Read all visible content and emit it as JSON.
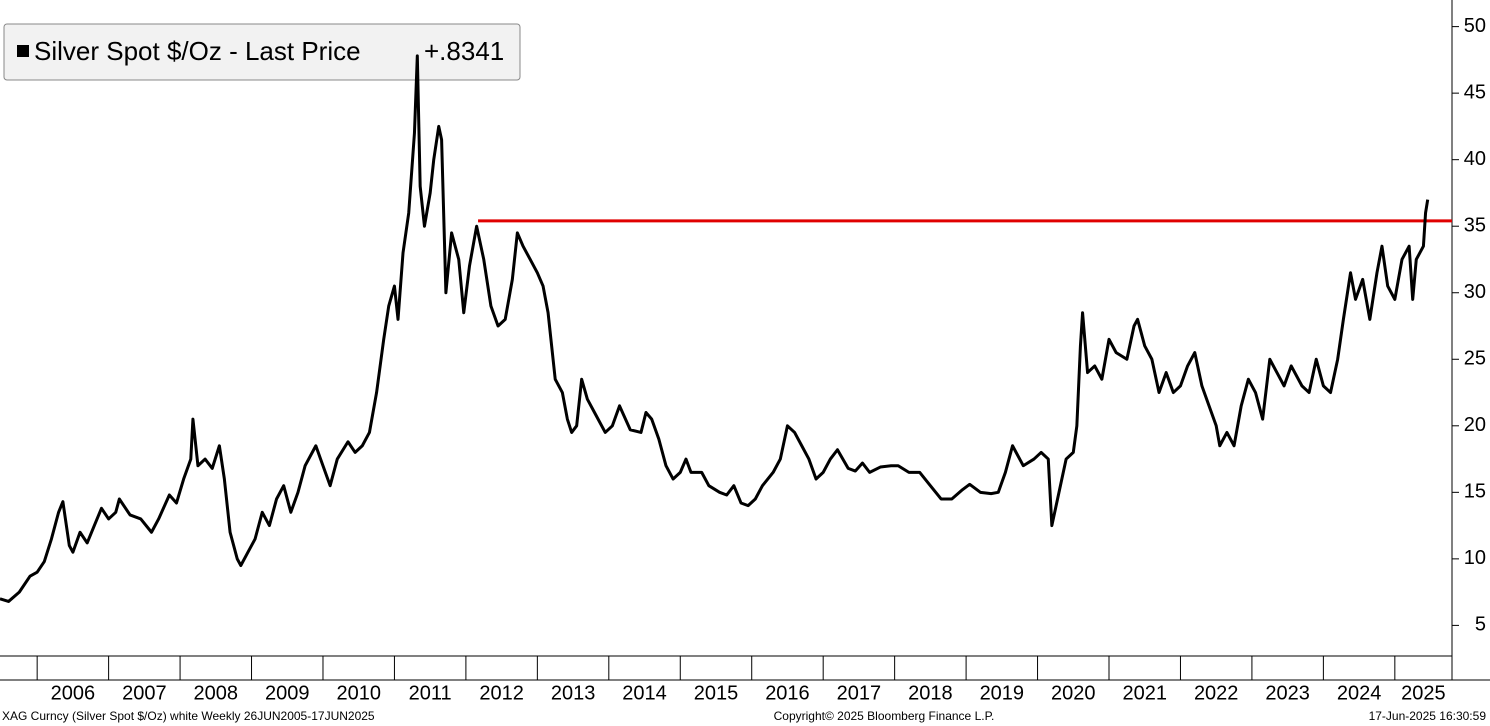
{
  "chart_data": {
    "type": "line",
    "legend_text": "Silver Spot $/Oz - Last Price",
    "legend_value": "+.8341",
    "footer_left": "XAG Curncy (Silver Spot  $/Oz) white  Weekly 26JUN2005-17JUN2025",
    "footer_center": "Copyright© 2025 Bloomberg Finance L.P.",
    "footer_right": "17-Jun-2025 16:30:59",
    "xlim": [
      2005.48,
      2025.8
    ],
    "ylim": [
      2.7,
      52
    ],
    "xticks": [
      2006,
      2007,
      2008,
      2009,
      2010,
      2011,
      2012,
      2013,
      2014,
      2015,
      2016,
      2017,
      2018,
      2019,
      2020,
      2021,
      2022,
      2023,
      2024,
      2025
    ],
    "yticks": [
      5,
      10,
      15,
      20,
      25,
      30,
      35,
      40,
      45,
      50
    ],
    "grid": false,
    "hline": {
      "value": 35.4,
      "from": 2012.17,
      "color": "#e00000"
    },
    "series": [
      {
        "name": "Silver Spot $/Oz",
        "color": "#000000",
        "x": [
          2005.48,
          2005.6,
          2005.75,
          2005.9,
          2006.0,
          2006.1,
          2006.2,
          2006.3,
          2006.36,
          2006.45,
          2006.5,
          2006.6,
          2006.7,
          2006.8,
          2006.9,
          2007.0,
          2007.1,
          2007.15,
          2007.3,
          2007.45,
          2007.6,
          2007.7,
          2007.85,
          2007.95,
          2008.05,
          2008.15,
          2008.18,
          2008.25,
          2008.35,
          2008.45,
          2008.55,
          2008.62,
          2008.7,
          2008.8,
          2008.85,
          2008.95,
          2009.05,
          2009.15,
          2009.25,
          2009.35,
          2009.45,
          2009.55,
          2009.65,
          2009.75,
          2009.9,
          2010.0,
          2010.1,
          2010.2,
          2010.35,
          2010.45,
          2010.55,
          2010.65,
          2010.75,
          2010.85,
          2010.92,
          2011.0,
          2011.05,
          2011.12,
          2011.2,
          2011.28,
          2011.32,
          2011.36,
          2011.42,
          2011.5,
          2011.55,
          2011.62,
          2011.66,
          2011.72,
          2011.8,
          2011.9,
          2011.97,
          2012.05,
          2012.15,
          2012.25,
          2012.35,
          2012.45,
          2012.55,
          2012.65,
          2012.72,
          2012.8,
          2012.9,
          2013.0,
          2013.08,
          2013.15,
          2013.25,
          2013.35,
          2013.42,
          2013.48,
          2013.55,
          2013.62,
          2013.7,
          2013.8,
          2013.95,
          2014.05,
          2014.15,
          2014.3,
          2014.45,
          2014.52,
          2014.6,
          2014.7,
          2014.8,
          2014.9,
          2015.0,
          2015.08,
          2015.15,
          2015.3,
          2015.4,
          2015.55,
          2015.65,
          2015.75,
          2015.85,
          2015.95,
          2016.05,
          2016.15,
          2016.3,
          2016.4,
          2016.5,
          2016.6,
          2016.7,
          2016.8,
          2016.9,
          2017.0,
          2017.1,
          2017.2,
          2017.35,
          2017.45,
          2017.55,
          2017.65,
          2017.8,
          2017.95,
          2018.05,
          2018.2,
          2018.35,
          2018.5,
          2018.65,
          2018.8,
          2018.95,
          2019.05,
          2019.2,
          2019.35,
          2019.45,
          2019.55,
          2019.65,
          2019.8,
          2019.95,
          2020.05,
          2020.15,
          2020.2,
          2020.3,
          2020.4,
          2020.5,
          2020.55,
          2020.6,
          2020.63,
          2020.7,
          2020.8,
          2020.9,
          2021.0,
          2021.1,
          2021.25,
          2021.35,
          2021.4,
          2021.5,
          2021.6,
          2021.7,
          2021.8,
          2021.9,
          2022.0,
          2022.1,
          2022.2,
          2022.3,
          2022.4,
          2022.5,
          2022.55,
          2022.65,
          2022.75,
          2022.85,
          2022.95,
          2023.05,
          2023.15,
          2023.25,
          2023.35,
          2023.45,
          2023.55,
          2023.7,
          2023.8,
          2023.9,
          2024.0,
          2024.1,
          2024.2,
          2024.28,
          2024.38,
          2024.45,
          2024.55,
          2024.65,
          2024.75,
          2024.82,
          2024.9,
          2025.0,
          2025.1,
          2025.2,
          2025.25,
          2025.3,
          2025.4,
          2025.43,
          2025.46
        ],
        "values": [
          7.0,
          6.8,
          7.5,
          8.7,
          9.0,
          9.8,
          11.5,
          13.5,
          14.3,
          11.0,
          10.5,
          12.0,
          11.2,
          12.5,
          13.8,
          13.0,
          13.5,
          14.5,
          13.3,
          13.0,
          12.0,
          13.0,
          14.8,
          14.2,
          16.0,
          17.5,
          20.5,
          17.0,
          17.5,
          16.8,
          18.5,
          16.0,
          12.0,
          10.0,
          9.5,
          10.5,
          11.5,
          13.5,
          12.5,
          14.5,
          15.5,
          13.5,
          15.0,
          17.0,
          18.5,
          17.0,
          15.5,
          17.5,
          18.8,
          18.0,
          18.5,
          19.5,
          22.5,
          26.5,
          29.0,
          30.5,
          28.0,
          33.0,
          36.0,
          42.0,
          47.8,
          38.0,
          35.0,
          37.5,
          40.0,
          42.5,
          41.5,
          30.0,
          34.5,
          32.5,
          28.5,
          32.0,
          35.0,
          32.5,
          29.0,
          27.5,
          28.0,
          31.0,
          34.5,
          33.5,
          32.5,
          31.5,
          30.5,
          28.5,
          23.5,
          22.5,
          20.5,
          19.5,
          20.0,
          23.5,
          22.0,
          21.0,
          19.5,
          20.0,
          21.5,
          19.7,
          19.5,
          21.0,
          20.5,
          19.0,
          17.0,
          16.0,
          16.5,
          17.5,
          16.5,
          16.5,
          15.5,
          15.0,
          14.8,
          15.5,
          14.2,
          14.0,
          14.5,
          15.5,
          16.5,
          17.5,
          20.0,
          19.5,
          18.5,
          17.5,
          16.0,
          16.5,
          17.5,
          18.2,
          16.8,
          16.6,
          17.2,
          16.5,
          16.9,
          17.0,
          17.0,
          16.5,
          16.5,
          15.5,
          14.5,
          14.5,
          15.2,
          15.6,
          15.0,
          14.9,
          15.0,
          16.5,
          18.5,
          17.0,
          17.5,
          18.0,
          17.5,
          12.5,
          15.0,
          17.5,
          18.0,
          20.0,
          26.0,
          28.5,
          24.0,
          24.5,
          23.5,
          26.5,
          25.5,
          25.0,
          27.5,
          28.0,
          26.0,
          25.0,
          22.5,
          24.0,
          22.5,
          23.0,
          24.5,
          25.5,
          23.0,
          21.5,
          20.0,
          18.5,
          19.5,
          18.5,
          21.5,
          23.5,
          22.5,
          20.5,
          25.0,
          24.0,
          23.0,
          24.5,
          23.0,
          22.5,
          25.0,
          23.0,
          22.5,
          25.0,
          28.0,
          31.5,
          29.5,
          31.0,
          28.0,
          31.5,
          33.5,
          30.5,
          29.5,
          32.5,
          33.5,
          29.5,
          32.5,
          33.5,
          36.0,
          37.0
        ]
      }
    ]
  }
}
